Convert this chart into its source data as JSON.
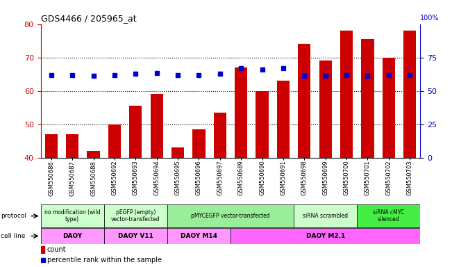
{
  "title": "GDS4466 / 205965_at",
  "samples": [
    "GSM550686",
    "GSM550687",
    "GSM550688",
    "GSM550692",
    "GSM550693",
    "GSM550694",
    "GSM550695",
    "GSM550696",
    "GSM550697",
    "GSM550689",
    "GSM550690",
    "GSM550691",
    "GSM550698",
    "GSM550699",
    "GSM550700",
    "GSM550701",
    "GSM550702",
    "GSM550703"
  ],
  "bar_values": [
    47,
    47,
    42,
    50,
    55.5,
    59,
    43,
    48.5,
    53.5,
    67,
    60,
    63,
    74,
    69,
    78,
    75.5,
    70,
    78
  ],
  "dot_values": [
    62,
    62,
    61,
    62,
    63,
    63.5,
    62,
    62,
    63,
    67,
    66,
    67,
    61,
    61,
    62,
    61,
    62,
    62
  ],
  "ylim_left": [
    40,
    80
  ],
  "ylim_right": [
    0,
    100
  ],
  "yticks_left": [
    40,
    50,
    60,
    70,
    80
  ],
  "yticks_right": [
    0,
    25,
    50,
    75
  ],
  "bar_color": "#cc0000",
  "dot_color": "#0000cc",
  "protocol_groups": [
    {
      "label": "no modification (wild\ntype)",
      "start": 0,
      "end": 3,
      "color": "#ccffcc"
    },
    {
      "label": "pEGFP (empty)\nvector-transfected",
      "start": 3,
      "end": 6,
      "color": "#ccffcc"
    },
    {
      "label": "pMYCEGFP vector-transfected",
      "start": 6,
      "end": 12,
      "color": "#99ee99"
    },
    {
      "label": "siRNA scrambled",
      "start": 12,
      "end": 15,
      "color": "#ccffcc"
    },
    {
      "label": "siRNA cMYC\nsilenced",
      "start": 15,
      "end": 18,
      "color": "#44ee44"
    }
  ],
  "cellline_groups": [
    {
      "label": "DAOY",
      "start": 0,
      "end": 3,
      "color": "#ff99ff"
    },
    {
      "label": "DAOY V11",
      "start": 3,
      "end": 6,
      "color": "#ff99ff"
    },
    {
      "label": "DAOY M14",
      "start": 6,
      "end": 9,
      "color": "#ff99ff"
    },
    {
      "label": "DAOY M2.1",
      "start": 9,
      "end": 18,
      "color": "#ff66ff"
    }
  ],
  "legend_count_color": "#cc0000",
  "legend_dot_color": "#0000cc",
  "left_axis_color": "#cc0000",
  "right_axis_color": "#0000cc",
  "bg_color": "#ffffff",
  "plot_bg_color": "#ffffff",
  "gridlines": [
    50,
    60,
    70
  ]
}
